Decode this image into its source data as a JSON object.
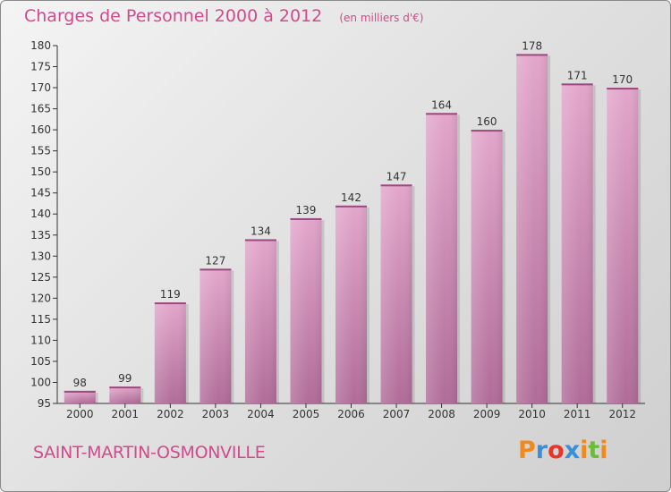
{
  "header": {
    "title": "Charges de Personnel 2000 à 2012",
    "unit": "(en milliers d'€)"
  },
  "footer": {
    "commune": "SAINT-MARTIN-OSMONVILLE",
    "brand": "Proxiti"
  },
  "colors": {
    "title": "#d14a8c",
    "bar_top": "#e3a6cb",
    "bar_bottom": "#b06c98"
  },
  "chart_data": {
    "type": "bar",
    "categories": [
      "2000",
      "2001",
      "2002",
      "2003",
      "2004",
      "2005",
      "2006",
      "2007",
      "2008",
      "2009",
      "2010",
      "2011",
      "2012"
    ],
    "values": [
      98,
      99,
      119,
      127,
      134,
      139,
      142,
      147,
      164,
      160,
      178,
      171,
      170
    ],
    "ylim": [
      95,
      180
    ],
    "yticks": [
      95,
      100,
      105,
      110,
      115,
      120,
      125,
      130,
      135,
      140,
      145,
      150,
      155,
      160,
      165,
      170,
      175,
      180
    ],
    "grid": false,
    "data_labels": true
  }
}
